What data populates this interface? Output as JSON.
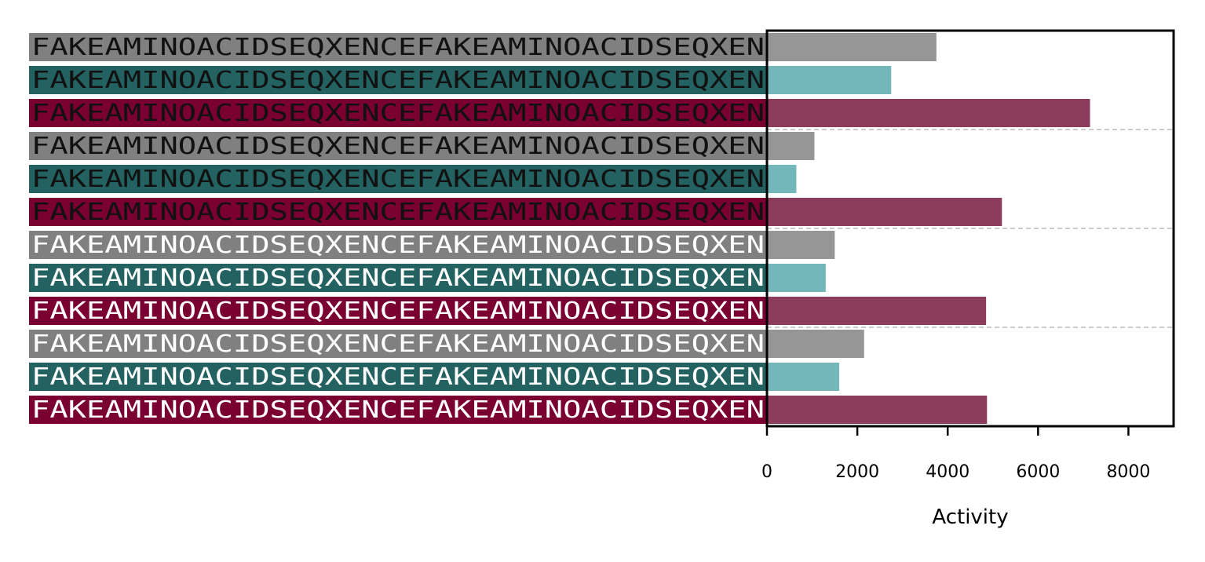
{
  "chart_data": {
    "type": "bar",
    "orientation": "horizontal",
    "xlabel": "Activity",
    "xlim": [
      0,
      9000
    ],
    "xticks": [
      0,
      2000,
      4000,
      6000,
      8000
    ],
    "xtick_labels": [
      "0",
      "2000",
      "4000",
      "6000",
      "8000"
    ],
    "group_separators_after": [
      3,
      6,
      9
    ],
    "rows": [
      {
        "label": "FAKEAMINOACIDSEQXENCEFAKEAMINOACIDSEQXEN",
        "value": 3750,
        "color": "#969696",
        "label_bg": "#808080",
        "label_color": "#111111"
      },
      {
        "label": "FAKEAMINOACIDSEQXENCEFAKEAMINOACIDSEQXEN",
        "value": 2750,
        "color": "#73b7bb",
        "label_bg": "#236260",
        "label_color": "#111111"
      },
      {
        "label": "FAKEAMINOACIDSEQXENCEFAKEAMINOACIDSEQXEN",
        "value": 7150,
        "color": "#8a3c5a",
        "label_bg": "#7a0032",
        "label_color": "#111111"
      },
      {
        "label": "FAKEAMINOACIDSEQXENCEFAKEAMINOACIDSEQXEN",
        "value": 1050,
        "color": "#969696",
        "label_bg": "#808080",
        "label_color": "#111111"
      },
      {
        "label": "FAKEAMINOACIDSEQXENCEFAKEAMINOACIDSEQXEN",
        "value": 650,
        "color": "#73b7bb",
        "label_bg": "#236260",
        "label_color": "#111111"
      },
      {
        "label": "FAKEAMINOACIDSEQXENCEFAKEAMINOACIDSEQXEN",
        "value": 5200,
        "color": "#8a3c5a",
        "label_bg": "#7a0032",
        "label_color": "#111111"
      },
      {
        "label": "FAKEAMINOACIDSEQXENCEFAKEAMINOACIDSEQXEN",
        "value": 1500,
        "color": "#969696",
        "label_bg": "#808080",
        "label_color": "#ffffff"
      },
      {
        "label": "FAKEAMINOACIDSEQXENCEFAKEAMINOACIDSEQXEN",
        "value": 1300,
        "color": "#73b7bb",
        "label_bg": "#236260",
        "label_color": "#ffffff"
      },
      {
        "label": "FAKEAMINOACIDSEQXENCEFAKEAMINOACIDSEQXEN",
        "value": 4850,
        "color": "#8a3c5a",
        "label_bg": "#7a0032",
        "label_color": "#ffffff"
      },
      {
        "label": "FAKEAMINOACIDSEQXENCEFAKEAMINOACIDSEQXEN",
        "value": 2150,
        "color": "#969696",
        "label_bg": "#808080",
        "label_color": "#ffffff"
      },
      {
        "label": "FAKEAMINOACIDSEQXENCEFAKEAMINOACIDSEQXEN",
        "value": 1600,
        "color": "#73b7bb",
        "label_bg": "#236260",
        "label_color": "#ffffff"
      },
      {
        "label": "FAKEAMINOACIDSEQXENCEFAKEAMINOACIDSEQXEN",
        "value": 4870,
        "color": "#8a3c5a",
        "label_bg": "#7a0032",
        "label_color": "#ffffff"
      }
    ],
    "separator_color": "#bbbbbb",
    "grid": false,
    "legend": "none"
  }
}
